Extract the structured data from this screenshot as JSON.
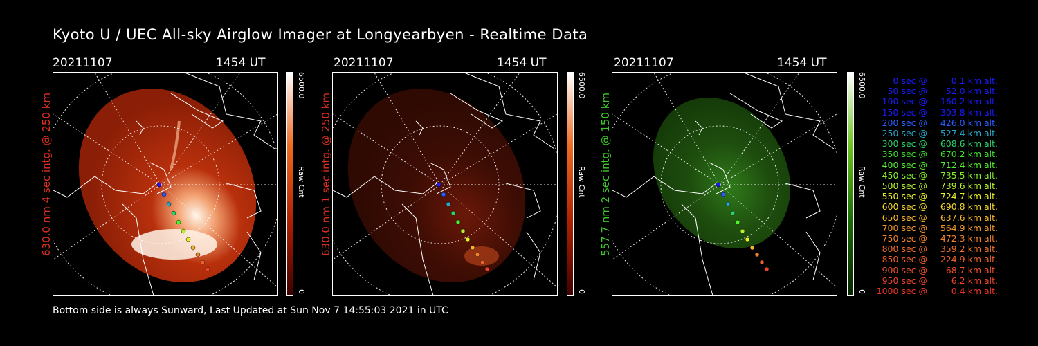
{
  "title": "Kyoto U / UEC All-sky Airglow Imager at Longyearbyen - Realtime Data",
  "panels": [
    {
      "date": "20211107",
      "time": "1454 UT",
      "label": "630.0 nm 4 sec intg. @ 250 km",
      "label_color": "#e0301e",
      "cbar_max": "6500.0",
      "cbar_min": "0",
      "cbar_label": "Raw Cnt",
      "palette": "red"
    },
    {
      "date": "20211107",
      "time": "1454 UT",
      "label": "630.0 nm 1 sec intg. @ 250 km",
      "label_color": "#e0301e",
      "cbar_max": "6500.0",
      "cbar_min": "0",
      "cbar_label": "Raw Cnt",
      "palette": "red"
    },
    {
      "date": "20211107",
      "time": "1454 UT",
      "label": "557.7 nm 2 sec intg. @ 150 km",
      "label_color": "#3ecb2a",
      "cbar_max": "6500.0",
      "cbar_min": "0",
      "cbar_label": "Raw Cnt",
      "palette": "green"
    }
  ],
  "legend": [
    {
      "sec": "0 sec @",
      "alt": "0.1 km alt.",
      "color": "#1a1aff"
    },
    {
      "sec": "50 sec @",
      "alt": "52.0 km alt.",
      "color": "#1a1aff"
    },
    {
      "sec": "100 sec @",
      "alt": "160.2 km alt.",
      "color": "#1a1aff"
    },
    {
      "sec": "150 sec @",
      "alt": "303.8 km alt.",
      "color": "#1a1aff"
    },
    {
      "sec": "200 sec @",
      "alt": "426.0 km alt.",
      "color": "#2a5cff"
    },
    {
      "sec": "250 sec @",
      "alt": "527.4 km alt.",
      "color": "#2aa6c8"
    },
    {
      "sec": "300 sec @",
      "alt": "608.6 km alt.",
      "color": "#2ad06a"
    },
    {
      "sec": "350 sec @",
      "alt": "670.2 km alt.",
      "color": "#3de02a"
    },
    {
      "sec": "400 sec @",
      "alt": "712.4 km alt.",
      "color": "#50f02a"
    },
    {
      "sec": "450 sec @",
      "alt": "735.5 km alt.",
      "color": "#80f22a"
    },
    {
      "sec": "500 sec @",
      "alt": "739.6 km alt.",
      "color": "#b8f22a"
    },
    {
      "sec": "550 sec @",
      "alt": "724.7 km alt.",
      "color": "#e8f02a"
    },
    {
      "sec": "600 sec @",
      "alt": "690.8 km alt.",
      "color": "#f2d42a"
    },
    {
      "sec": "650 sec @",
      "alt": "637.6 km alt.",
      "color": "#f2b42a"
    },
    {
      "sec": "700 sec @",
      "alt": "564.9 km alt.",
      "color": "#f29a2a"
    },
    {
      "sec": "750 sec @",
      "alt": "472.3 km alt.",
      "color": "#f0822a"
    },
    {
      "sec": "800 sec @",
      "alt": "359.2 km alt.",
      "color": "#f0702a"
    },
    {
      "sec": "850 sec @",
      "alt": "224.9 km alt.",
      "color": "#ef602a"
    },
    {
      "sec": "900 sec @",
      "alt": "68.7 km alt.",
      "color": "#ee502a"
    },
    {
      "sec": "950 sec @",
      "alt": "6.2 km alt.",
      "color": "#ee422a"
    },
    {
      "sec": "1000 sec @",
      "alt": "0.4 km alt.",
      "color": "#ee342a"
    }
  ],
  "footer": "Bottom side is always Sunward, Last Updated at Sun Nov  7 14:55:03 2021 in UTC"
}
